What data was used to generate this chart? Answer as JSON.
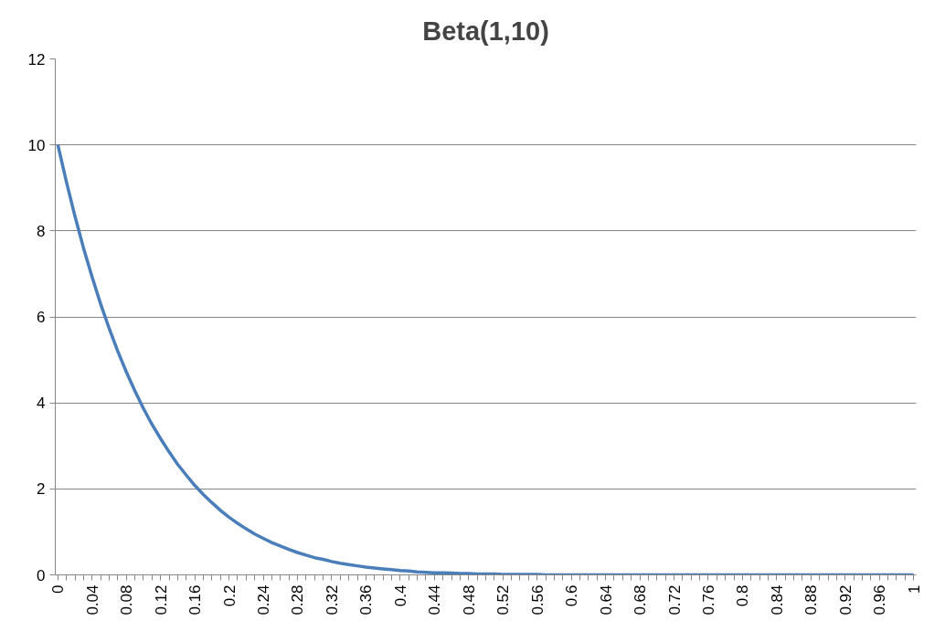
{
  "chart_data": {
    "type": "line",
    "title": "Beta(1,10)",
    "categories": [
      "0",
      null,
      null,
      null,
      "0.04",
      null,
      null,
      null,
      "0.08",
      null,
      null,
      null,
      "0.12",
      null,
      null,
      null,
      "0.16",
      null,
      null,
      null,
      "0.2",
      null,
      null,
      null,
      "0.24",
      null,
      null,
      null,
      "0.28",
      null,
      null,
      null,
      "0.32",
      null,
      null,
      null,
      "0.36",
      null,
      null,
      null,
      "0.4",
      null,
      null,
      null,
      "0.44",
      null,
      null,
      null,
      "0.48",
      null,
      null,
      null,
      "0.52",
      null,
      null,
      null,
      "0.56",
      null,
      null,
      null,
      "0.6",
      null,
      null,
      null,
      "0.64",
      null,
      null,
      null,
      "0.68",
      null,
      null,
      null,
      "0.72",
      null,
      null,
      null,
      "0.76",
      null,
      null,
      null,
      "0.8",
      null,
      null,
      null,
      "0.84",
      null,
      null,
      null,
      "0.88",
      null,
      null,
      null,
      "0.92",
      null,
      null,
      null,
      "0.96",
      null,
      null,
      null,
      "1"
    ],
    "series": [
      {
        "color": "#4a7ebb",
        "values": [
          10,
          9.14,
          8.34,
          7.6,
          6.93,
          6.3,
          5.73,
          5.2,
          4.72,
          4.28,
          3.87,
          3.5,
          3.17,
          2.86,
          2.57,
          2.32,
          2.08,
          1.87,
          1.68,
          1.5,
          1.34,
          1.2,
          1.07,
          0.95,
          0.85,
          0.75,
          0.67,
          0.59,
          0.52,
          0.46,
          0.4,
          0.36,
          0.31,
          0.27,
          0.24,
          0.21,
          0.18,
          0.16,
          0.14,
          0.12,
          0.1,
          0.09,
          0.07,
          0.06,
          0.05,
          0.05,
          0.04,
          0.03,
          0.03,
          0.02,
          0.02,
          0.02,
          0.01,
          0.01,
          0.01,
          0.01,
          0.01,
          0,
          0,
          0,
          0,
          0,
          0,
          0,
          0,
          0,
          0,
          0,
          0,
          0,
          0,
          0,
          0,
          0,
          0,
          0,
          0,
          0,
          0,
          0,
          0,
          0,
          0,
          0,
          0,
          0,
          0,
          0,
          0,
          0,
          0,
          0,
          0,
          0,
          0,
          0,
          0,
          0,
          0,
          0,
          0
        ]
      }
    ],
    "ylim": [
      0,
      12
    ],
    "yticks": [
      0,
      2,
      4,
      6,
      8,
      10,
      12
    ],
    "grid": "y"
  }
}
